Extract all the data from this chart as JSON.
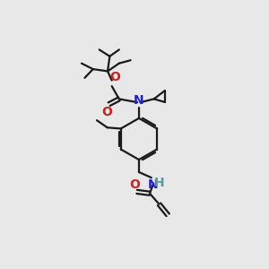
{
  "bg_color": "#e8e8e8",
  "bond_color": "#1a1a1a",
  "N_color": "#2020cc",
  "O_color": "#cc2020",
  "H_color": "#5a9a9a",
  "line_width": 1.6,
  "figsize": [
    3.0,
    3.0
  ],
  "dpi": 100,
  "xlim": [
    0,
    10
  ],
  "ylim": [
    0,
    10
  ]
}
